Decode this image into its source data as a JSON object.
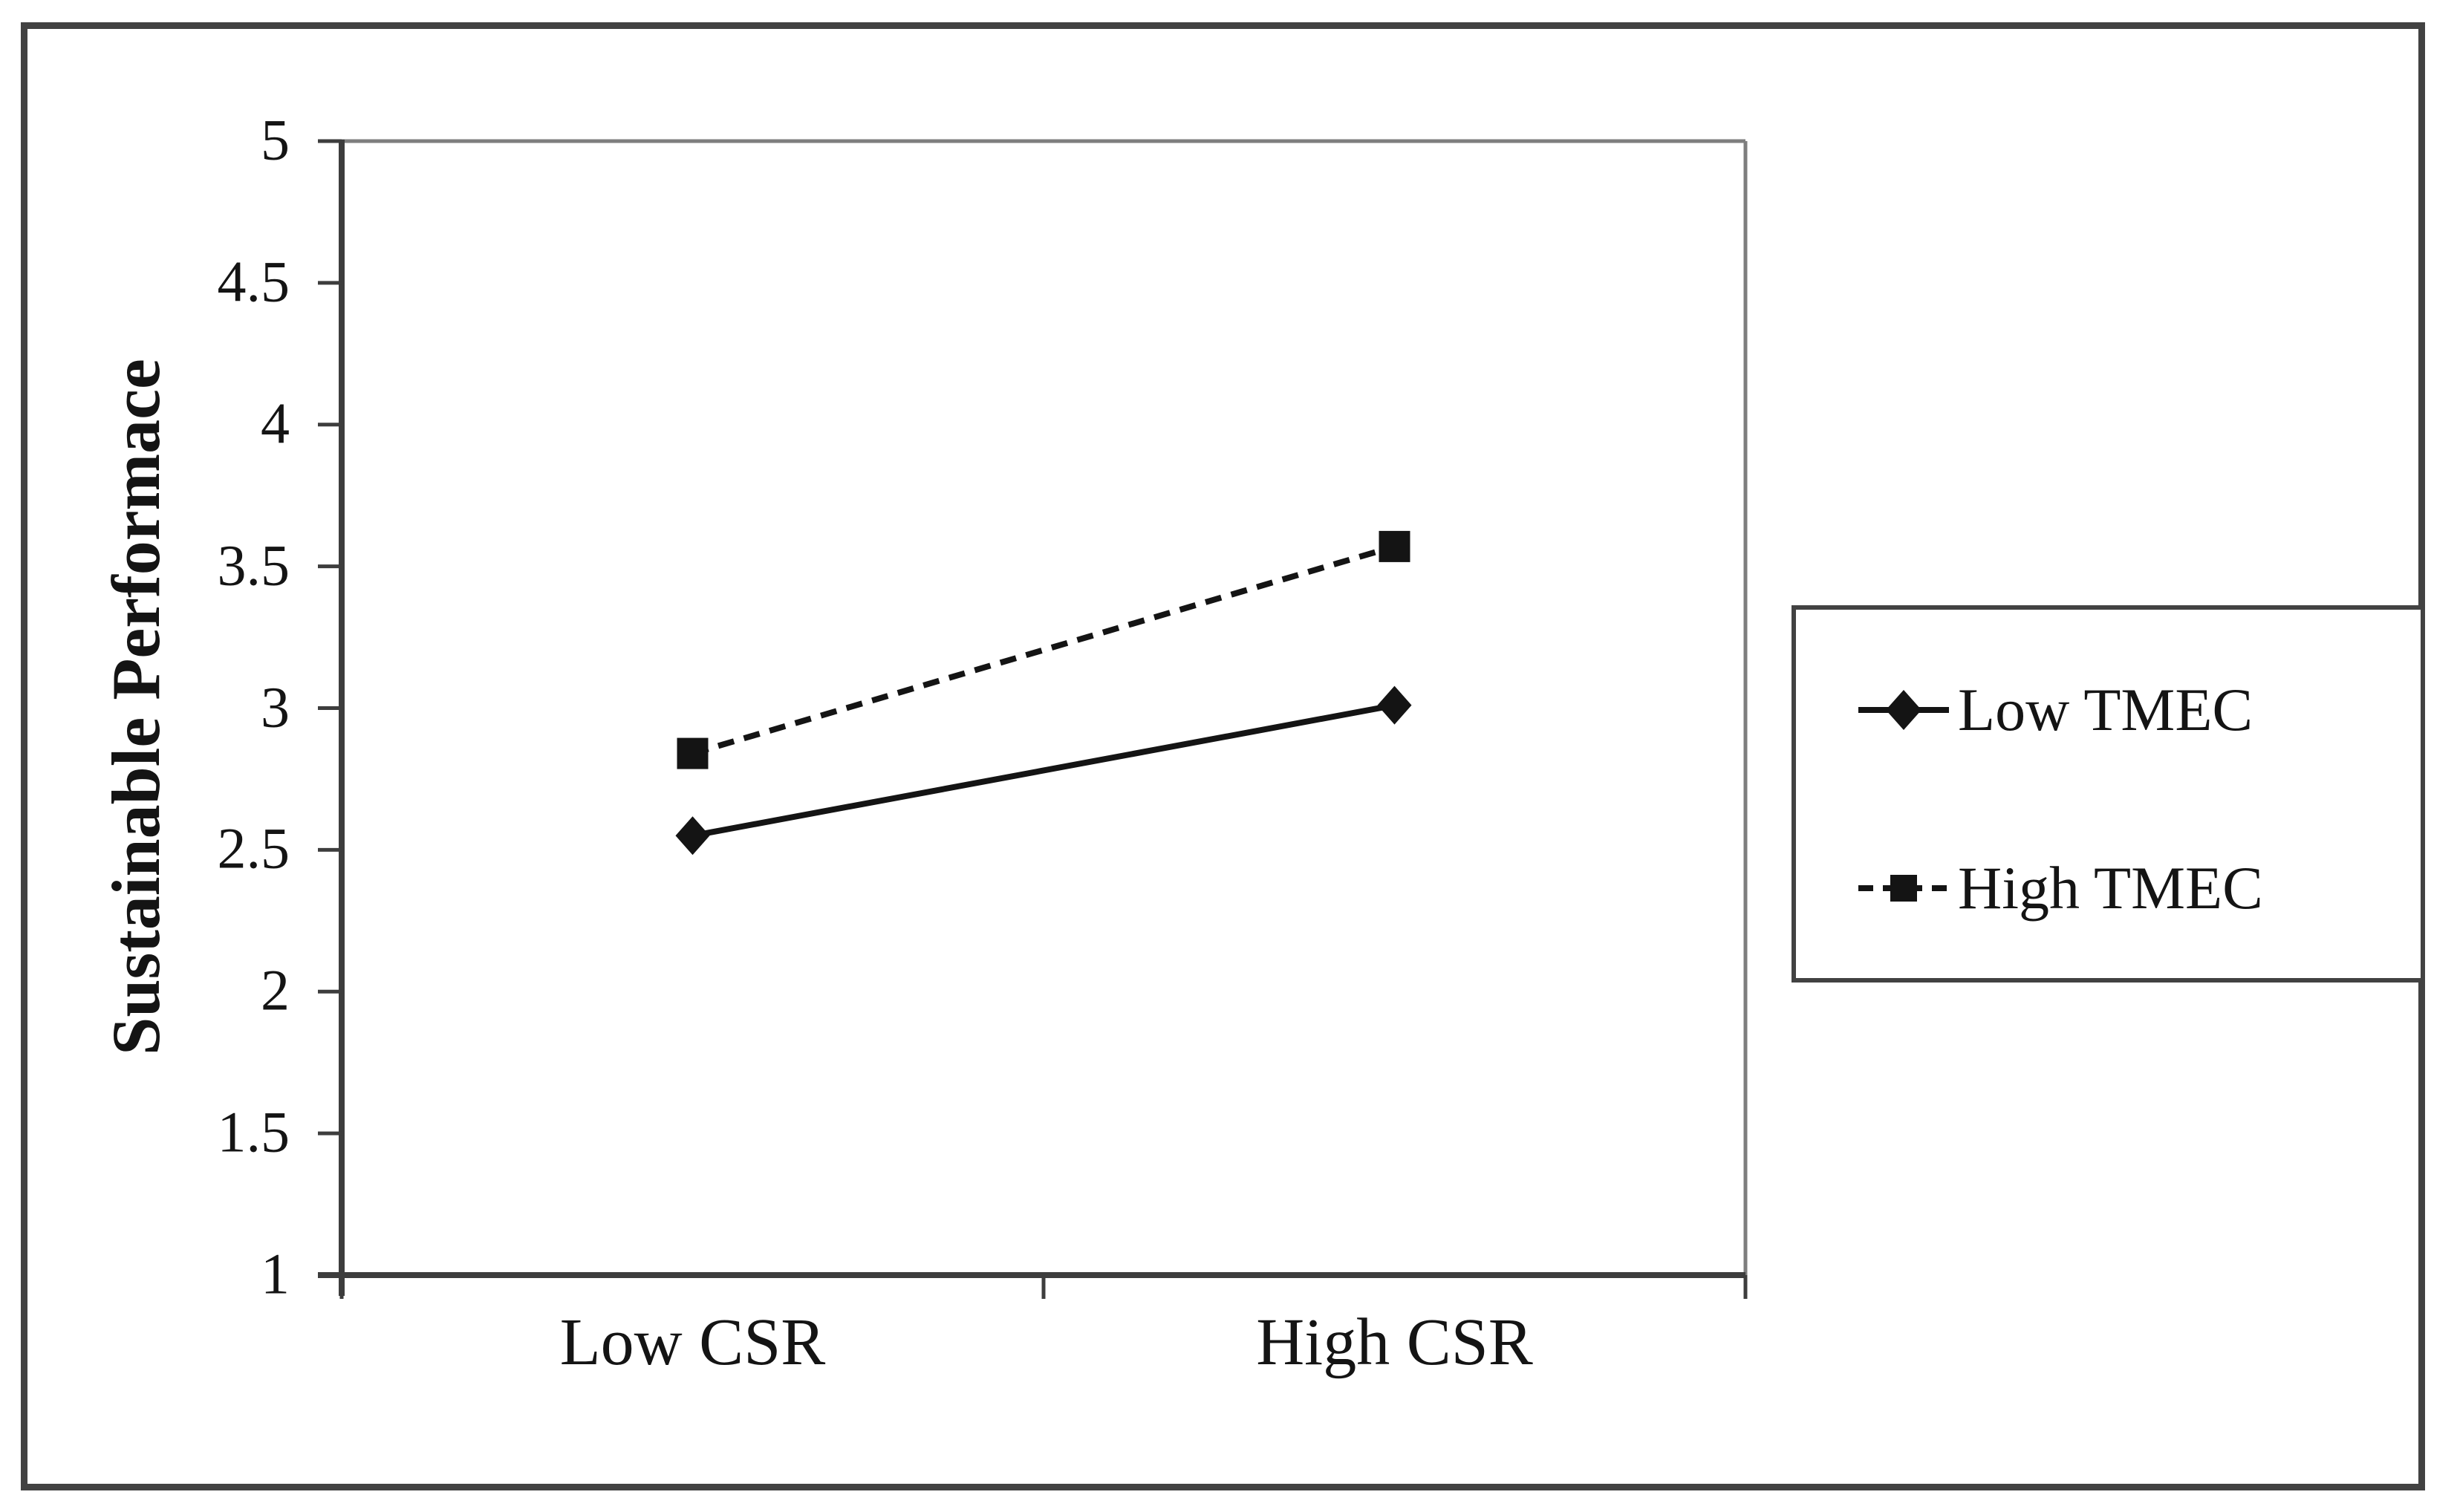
{
  "chart_data": {
    "type": "line",
    "title": "",
    "xlabel": "",
    "ylabel": "Sustainable Performace",
    "categories": [
      "Low CSR",
      "High CSR"
    ],
    "series": [
      {
        "name": "Low TMEC",
        "values": [
          2.55,
          3.01
        ],
        "line_style": "solid",
        "marker": "diamond"
      },
      {
        "name": "High TMEC",
        "values": [
          2.84,
          3.57
        ],
        "line_style": "dashed",
        "marker": "square"
      }
    ],
    "ylim": [
      1,
      5
    ],
    "ytick_values": [
      5,
      4.5,
      4,
      3.5,
      3,
      2.5,
      2,
      1.5,
      1
    ],
    "ytick_labels": [
      "5",
      "4.5",
      "4",
      "3.5",
      "3",
      "2.5",
      "2",
      "1.5",
      "1"
    ],
    "grid": false,
    "legend_position": "right-outside",
    "colors": {
      "ink": "#141414",
      "axis": "#3d3d3d",
      "frame": "#7e7e7e"
    }
  },
  "legend": {
    "items": [
      {
        "label": "Low TMEC"
      },
      {
        "label": "High TMEC"
      }
    ]
  }
}
